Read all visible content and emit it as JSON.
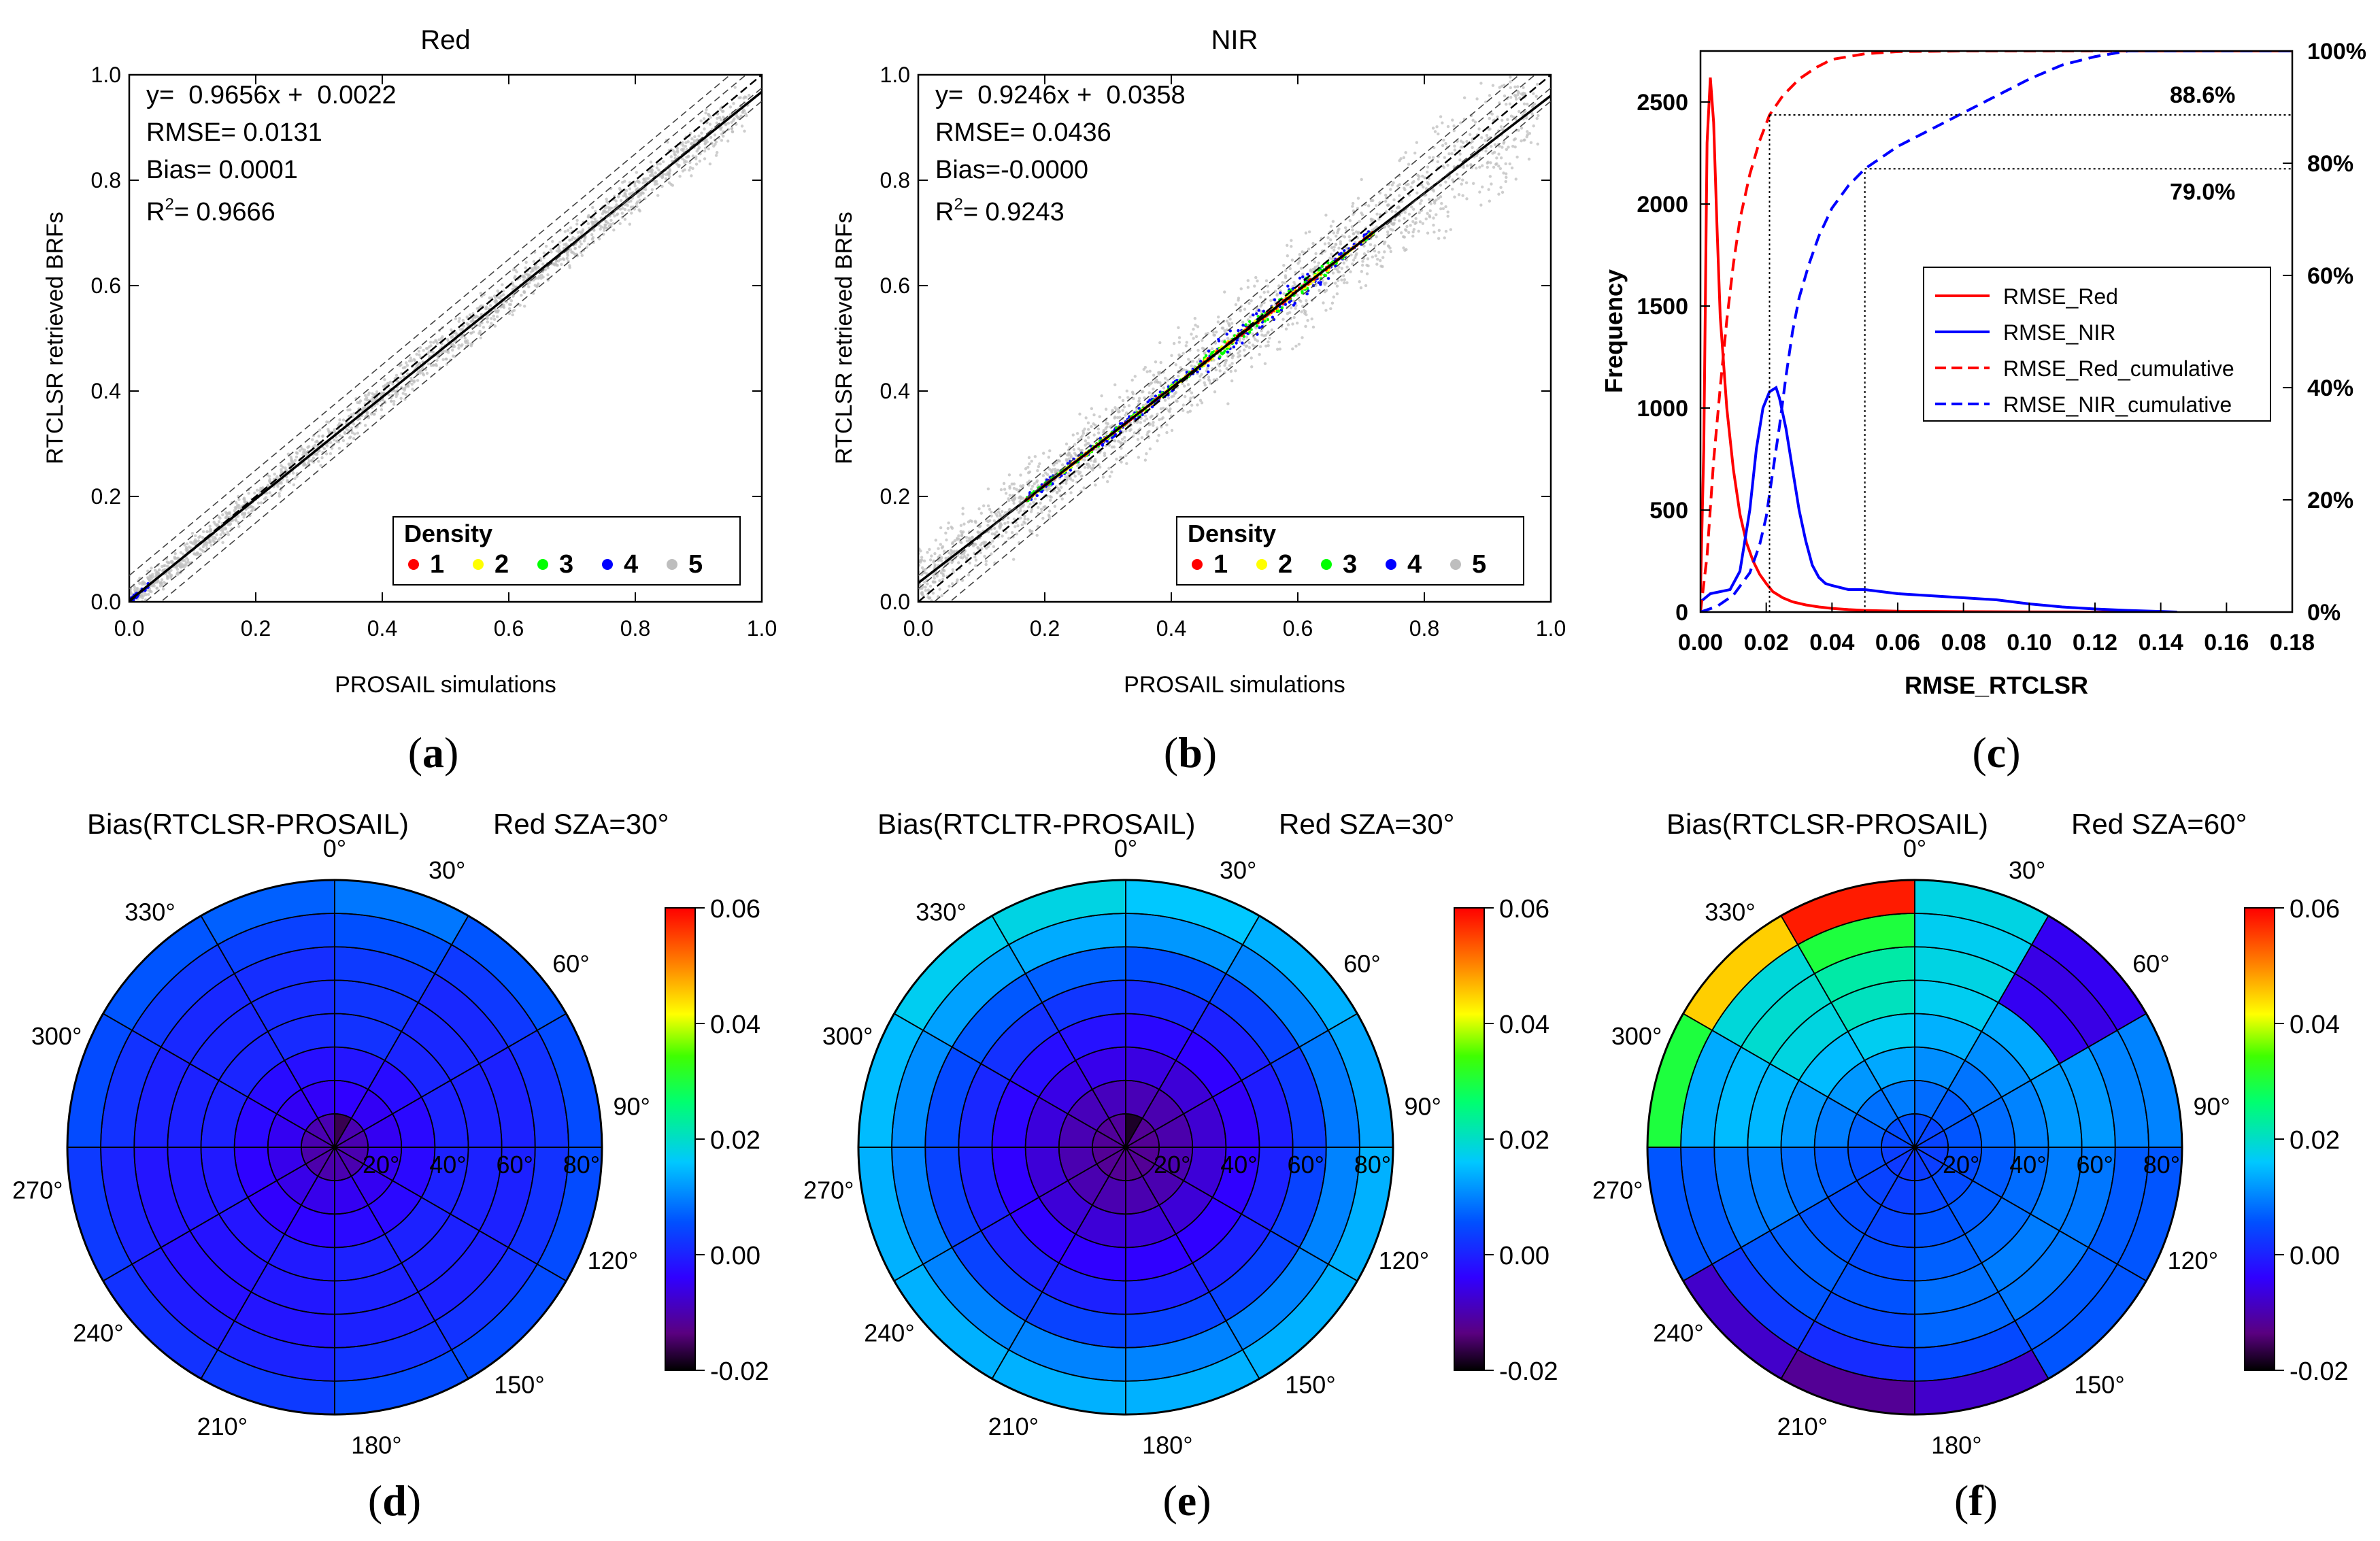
{
  "figure": {
    "panel_labels": [
      {
        "open": "(",
        "letter": "a",
        "close": ")"
      },
      {
        "open": "(",
        "letter": "b",
        "close": ")"
      },
      {
        "open": "(",
        "letter": "c",
        "close": ")"
      },
      {
        "open": "(",
        "letter": "d",
        "close": ")"
      },
      {
        "open": "(",
        "letter": "e",
        "close": ")"
      },
      {
        "open": "(",
        "letter": "f",
        "close": ")"
      }
    ]
  },
  "chart_data": [
    {
      "id": "a",
      "type": "scatter",
      "title": "Red",
      "xlabel": "PROSAIL simulations",
      "ylabel": "RTCLSR retrieved BRFs",
      "xlim": [
        0,
        1.0
      ],
      "ylim": [
        0,
        1.0
      ],
      "xticks": [
        "0.0",
        "0.2",
        "0.4",
        "0.6",
        "0.8",
        "1.0"
      ],
      "yticks": [
        "0.0",
        "0.2",
        "0.4",
        "0.6",
        "0.8",
        "1.0"
      ],
      "fit": {
        "slope": 0.9656,
        "intercept": 0.0022
      },
      "stats": [
        "y=  0.9656x +  0.0022",
        "RMSE= 0.0131",
        "Bias= 0.0001",
        "R",
        "= 0.9666"
      ],
      "stats_sup": "2",
      "legend": {
        "title": "Density",
        "items": [
          {
            "label": "1",
            "color": "#ff0000"
          },
          {
            "label": "2",
            "color": "#ffff00"
          },
          {
            "label": "3",
            "color": "#00ff00"
          },
          {
            "label": "4",
            "color": "#0000ff"
          },
          {
            "label": "5",
            "color": "#bebebe"
          }
        ]
      }
    },
    {
      "id": "b",
      "type": "scatter",
      "title": "NIR",
      "xlabel": "PROSAIL simulations",
      "ylabel": "RTCLSR retrieved BRFs",
      "xlim": [
        0,
        1.0
      ],
      "ylim": [
        0,
        1.0
      ],
      "xticks": [
        "0.0",
        "0.2",
        "0.4",
        "0.6",
        "0.8",
        "1.0"
      ],
      "yticks": [
        "0.0",
        "0.2",
        "0.4",
        "0.6",
        "0.8",
        "1.0"
      ],
      "fit": {
        "slope": 0.9246,
        "intercept": 0.0358
      },
      "stats": [
        "y=  0.9246x +  0.0358",
        "RMSE= 0.0436",
        "Bias=-0.0000",
        "R",
        "= 0.9243"
      ],
      "stats_sup": "2",
      "legend": {
        "title": "Density",
        "items": [
          {
            "label": "1",
            "color": "#ff0000"
          },
          {
            "label": "2",
            "color": "#ffff00"
          },
          {
            "label": "3",
            "color": "#00ff00"
          },
          {
            "label": "4",
            "color": "#0000ff"
          },
          {
            "label": "5",
            "color": "#bebebe"
          }
        ]
      }
    },
    {
      "id": "c",
      "type": "line",
      "xlabel": "RMSE_RTCLSR",
      "ylabel": "Frequency",
      "xlim": [
        0,
        0.18
      ],
      "ylim": [
        0,
        2750
      ],
      "y2lim": [
        0,
        100
      ],
      "xticks": [
        "0.00",
        "0.02",
        "0.04",
        "0.06",
        "0.08",
        "0.10",
        "0.12",
        "0.14",
        "0.16",
        "0.18"
      ],
      "yticks": [
        "0",
        "500",
        "1000",
        "1500",
        "2000",
        "2500"
      ],
      "y2ticks": [
        "0%",
        "20%",
        "40%",
        "60%",
        "80%",
        "100%"
      ],
      "annotations": [
        {
          "text": "88.6%",
          "x": 0.021,
          "y2": 88.6
        },
        {
          "text": "79.0%",
          "x": 0.05,
          "y2": 79.0
        }
      ],
      "series": [
        {
          "name": "RMSE_Red",
          "color": "#ff0000",
          "dash": false,
          "axis": "left",
          "x": [
            0.0,
            0.001,
            0.002,
            0.003,
            0.004,
            0.005,
            0.006,
            0.008,
            0.01,
            0.012,
            0.014,
            0.016,
            0.018,
            0.02,
            0.022,
            0.025,
            0.028,
            0.032,
            0.036,
            0.04,
            0.045,
            0.05,
            0.06,
            0.08,
            0.1,
            0.12,
            0.14
          ],
          "y": [
            100,
            800,
            2300,
            2620,
            2400,
            1900,
            1450,
            1000,
            700,
            480,
            340,
            250,
            185,
            140,
            100,
            70,
            50,
            35,
            25,
            18,
            12,
            8,
            4,
            2,
            1,
            0,
            0
          ]
        },
        {
          "name": "RMSE_NIR",
          "color": "#0000ff",
          "dash": false,
          "axis": "left",
          "x": [
            0.0,
            0.003,
            0.006,
            0.009,
            0.012,
            0.015,
            0.017,
            0.019,
            0.021,
            0.023,
            0.024,
            0.026,
            0.028,
            0.03,
            0.032,
            0.034,
            0.036,
            0.038,
            0.04,
            0.045,
            0.05,
            0.055,
            0.06,
            0.07,
            0.08,
            0.09,
            0.1,
            0.11,
            0.12,
            0.13,
            0.14,
            0.145
          ],
          "y": [
            50,
            90,
            100,
            110,
            200,
            500,
            800,
            1000,
            1080,
            1100,
            1050,
            900,
            700,
            500,
            350,
            230,
            170,
            140,
            130,
            110,
            110,
            100,
            90,
            80,
            70,
            60,
            40,
            25,
            15,
            8,
            3,
            0
          ]
        },
        {
          "name": "RMSE_Red_cumulative",
          "color": "#ff0000",
          "dash": true,
          "axis": "right",
          "x": [
            0.0,
            0.002,
            0.004,
            0.006,
            0.008,
            0.01,
            0.012,
            0.015,
            0.018,
            0.021,
            0.025,
            0.03,
            0.035,
            0.04,
            0.05,
            0.06,
            0.08,
            0.1,
            0.14,
            0.18
          ],
          "y": [
            0,
            10,
            27,
            40,
            52,
            62,
            70,
            78,
            84,
            88.6,
            92,
            95,
            97,
            98.5,
            99.5,
            99.9,
            100,
            100,
            100,
            100
          ]
        },
        {
          "name": "RMSE_NIR_cumulative",
          "color": "#0000ff",
          "dash": true,
          "axis": "right",
          "x": [
            0.0,
            0.005,
            0.01,
            0.015,
            0.018,
            0.02,
            0.022,
            0.024,
            0.026,
            0.028,
            0.03,
            0.033,
            0.036,
            0.04,
            0.045,
            0.05,
            0.055,
            0.06,
            0.07,
            0.08,
            0.09,
            0.1,
            0.11,
            0.12,
            0.13,
            0.18
          ],
          "y": [
            0,
            1,
            3,
            7,
            12,
            17,
            25,
            33,
            42,
            50,
            56,
            62,
            67,
            72,
            76,
            79,
            81,
            83,
            86,
            89,
            92,
            95,
            97.5,
            99,
            100,
            100
          ]
        }
      ]
    },
    {
      "id": "d",
      "type": "heatmap",
      "polar": true,
      "title_left": "Bias(RTCLSR-PROSAIL)",
      "title_right": "Red  SZA=30°",
      "angle_labels": [
        "0°",
        "30°",
        "60°",
        "90°",
        "120°",
        "150°",
        "180°",
        "210°",
        "240°",
        "270°",
        "300°",
        "330°"
      ],
      "radius_labels": [
        "20°",
        "40°",
        "60°",
        "80°"
      ],
      "colorbar": {
        "min": -0.02,
        "max": 0.06,
        "ticks": [
          "0.06",
          "0.04",
          "0.02",
          "0.00",
          "-0.02"
        ]
      },
      "ring_values": [
        -0.01,
        -0.005,
        -0.003,
        0.0,
        0.0,
        0.0,
        0.002,
        0.005
      ],
      "sector_offsets": [
        0.004,
        0.001,
        0.0,
        0.0,
        0.0,
        0.0,
        -0.002,
        -0.003,
        -0.002,
        0.0,
        0.001,
        0.002
      ],
      "cell_overrides": [
        {
          "ring": 0,
          "sector": 0,
          "value": -0.016
        }
      ]
    },
    {
      "id": "e",
      "type": "heatmap",
      "polar": true,
      "title_left": "Bias(RTCLTR-PROSAIL)",
      "title_right": "Red  SZA=30°",
      "angle_labels": [
        "0°",
        "30°",
        "60°",
        "90°",
        "120°",
        "150°",
        "180°",
        "210°",
        "240°",
        "270°",
        "300°",
        "330°"
      ],
      "radius_labels": [
        "20°",
        "40°",
        "60°",
        "80°"
      ],
      "colorbar": {
        "min": -0.02,
        "max": 0.06,
        "ticks": [
          "0.06",
          "0.04",
          "0.02",
          "0.00",
          "-0.02"
        ]
      },
      "ring_values": [
        -0.012,
        -0.01,
        -0.007,
        -0.004,
        0.0,
        0.004,
        0.01,
        0.014
      ],
      "sector_offsets": [
        0.002,
        0.0,
        -0.001,
        0.0,
        0.0,
        0.0,
        0.0,
        0.0,
        0.0,
        0.001,
        0.003,
        0.004
      ],
      "cell_overrides": [
        {
          "ring": 0,
          "sector": 0,
          "value": -0.018
        }
      ]
    },
    {
      "id": "f",
      "type": "heatmap",
      "polar": true,
      "title_left": "Bias(RTCLSR-PROSAIL)",
      "title_right": "Red  SZA=60°",
      "angle_labels": [
        "0°",
        "30°",
        "60°",
        "90°",
        "120°",
        "150°",
        "180°",
        "210°",
        "240°",
        "270°",
        "300°",
        "330°"
      ],
      "radius_labels": [
        "20°",
        "40°",
        "60°",
        "80°"
      ],
      "colorbar": {
        "min": -0.02,
        "max": 0.06,
        "ticks": [
          "0.06",
          "0.04",
          "0.02",
          "0.00",
          "-0.02"
        ]
      },
      "ring_values": [
        0.004,
        0.006,
        0.008,
        0.01,
        0.012,
        0.012,
        0.01,
        0.01
      ],
      "sector_offsets": [
        0.008,
        0.002,
        0.0,
        -0.004,
        -0.004,
        -0.006,
        -0.01,
        -0.008,
        -0.004,
        0.004,
        0.01,
        0.014
      ],
      "cell_overrides": [
        {
          "ring": 7,
          "sector": 11,
          "value": 0.058
        },
        {
          "ring": 6,
          "sector": 11,
          "value": 0.03
        },
        {
          "ring": 7,
          "sector": 10,
          "value": 0.045
        },
        {
          "ring": 7,
          "sector": 9,
          "value": 0.03
        },
        {
          "ring": 7,
          "sector": 6,
          "value": -0.012
        },
        {
          "ring": 7,
          "sector": 5,
          "value": -0.008
        },
        {
          "ring": 7,
          "sector": 7,
          "value": -0.008
        },
        {
          "ring": 7,
          "sector": 1,
          "value": -0.005
        },
        {
          "ring": 6,
          "sector": 1,
          "value": -0.006
        },
        {
          "ring": 5,
          "sector": 1,
          "value": -0.005
        }
      ]
    }
  ]
}
